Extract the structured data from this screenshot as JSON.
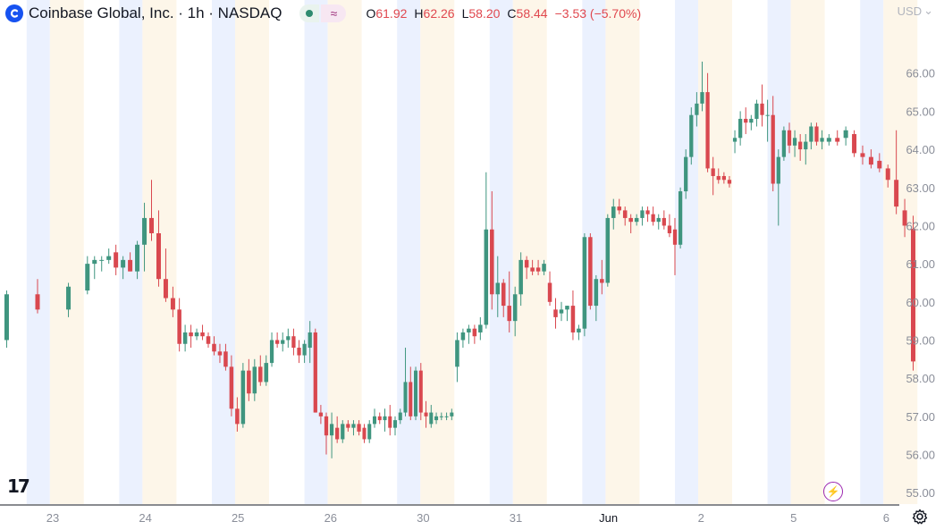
{
  "header": {
    "symbol_title": "Coinbase Global, Inc. · 1h · NASDAQ",
    "indicator_icon": "wave-icon",
    "ohlc": [
      {
        "key": "O",
        "value": "61.92"
      },
      {
        "key": "H",
        "value": "62.26"
      },
      {
        "key": "L",
        "value": "58.20"
      },
      {
        "key": "C",
        "value": "58.44"
      }
    ],
    "change": "−3.53 (−5.70%)",
    "currency": "USD"
  },
  "colors": {
    "up": "#3f957f",
    "down": "#d9484f",
    "premarket_band": "#ebf1fe",
    "postmarket_band": "#fdf6e9",
    "axis_text": "#8a8e99",
    "brand": "#1652f0"
  },
  "chart_data": {
    "type": "candlestick",
    "title": "Coinbase Global, Inc. · 1h · NASDAQ",
    "interval": "1h",
    "ylim": [
      54.7,
      67.4
    ],
    "y_ticks": [
      "55.00",
      "56.00",
      "57.00",
      "58.00",
      "59.00",
      "60.00",
      "61.00",
      "62.00",
      "63.00",
      "64.00",
      "65.00",
      "66.00"
    ],
    "x_tick_labels": [
      "23",
      "24",
      "25",
      "26",
      "30",
      "31",
      "Jun",
      "2",
      "5",
      "6"
    ],
    "grid": false,
    "extended_hours_shading": true,
    "days": [
      {
        "day": "22",
        "candles": [
          {
            "o": 59.0,
            "h": 60.3,
            "l": 58.8,
            "c": 60.2
          },
          {
            "o": 60.2,
            "h": 60.6,
            "l": 59.7,
            "c": 59.8
          },
          {
            "o": 59.8,
            "h": 60.5,
            "l": 59.6,
            "c": 60.4
          }
        ]
      },
      {
        "day": "23",
        "candles": [
          {
            "o": 60.3,
            "h": 61.2,
            "l": 60.2,
            "c": 61.0
          },
          {
            "o": 61.0,
            "h": 61.2,
            "l": 60.6,
            "c": 61.1
          },
          {
            "o": 61.1,
            "h": 61.2,
            "l": 60.8,
            "c": 61.1
          },
          {
            "o": 61.1,
            "h": 61.4,
            "l": 61.0,
            "c": 61.2
          },
          {
            "o": 61.3,
            "h": 61.5,
            "l": 60.7,
            "c": 60.9
          },
          {
            "o": 60.9,
            "h": 61.2,
            "l": 60.6,
            "c": 61.1
          },
          {
            "o": 61.1,
            "h": 61.3,
            "l": 60.8,
            "c": 60.8
          },
          {
            "o": 60.8,
            "h": 61.6,
            "l": 60.6,
            "c": 61.5
          },
          {
            "o": 61.5,
            "h": 62.6,
            "l": 60.8,
            "c": 62.2
          },
          {
            "o": 62.2,
            "h": 63.2,
            "l": 61.6,
            "c": 61.8
          },
          {
            "o": 61.8,
            "h": 62.4,
            "l": 60.4,
            "c": 60.6
          },
          {
            "o": 60.6,
            "h": 61.4,
            "l": 60.0,
            "c": 60.1
          },
          {
            "o": 60.1,
            "h": 60.4,
            "l": 59.6,
            "c": 59.8
          }
        ]
      },
      {
        "day": "24",
        "candles": [
          {
            "o": 59.8,
            "h": 60.1,
            "l": 58.7,
            "c": 58.9
          },
          {
            "o": 58.9,
            "h": 59.4,
            "l": 58.7,
            "c": 59.2
          },
          {
            "o": 59.2,
            "h": 59.4,
            "l": 58.8,
            "c": 59.1
          },
          {
            "o": 59.1,
            "h": 59.3,
            "l": 59.0,
            "c": 59.2
          },
          {
            "o": 59.2,
            "h": 59.4,
            "l": 59.0,
            "c": 59.1
          },
          {
            "o": 59.1,
            "h": 59.2,
            "l": 58.8,
            "c": 58.9
          },
          {
            "o": 58.9,
            "h": 59.1,
            "l": 58.6,
            "c": 58.7
          },
          {
            "o": 58.7,
            "h": 58.9,
            "l": 58.4,
            "c": 58.6
          },
          {
            "o": 58.7,
            "h": 58.9,
            "l": 58.2,
            "c": 58.3
          },
          {
            "o": 58.3,
            "h": 58.6,
            "l": 57.0,
            "c": 57.2
          },
          {
            "o": 57.2,
            "h": 57.5,
            "l": 56.6,
            "c": 56.8
          },
          {
            "o": 56.8,
            "h": 58.4,
            "l": 56.7,
            "c": 58.2
          },
          {
            "o": 58.2,
            "h": 58.5,
            "l": 57.4,
            "c": 57.6
          },
          {
            "o": 57.6,
            "h": 58.5,
            "l": 57.4,
            "c": 58.3
          },
          {
            "o": 58.3,
            "h": 58.6,
            "l": 57.8,
            "c": 57.9
          },
          {
            "o": 57.9,
            "h": 58.6,
            "l": 57.8,
            "c": 58.4
          }
        ]
      },
      {
        "day": "25",
        "candles": [
          {
            "o": 58.4,
            "h": 59.2,
            "l": 58.3,
            "c": 59.0
          },
          {
            "o": 59.0,
            "h": 59.2,
            "l": 58.8,
            "c": 58.9
          },
          {
            "o": 58.9,
            "h": 59.2,
            "l": 58.7,
            "c": 59.0
          },
          {
            "o": 59.0,
            "h": 59.3,
            "l": 58.8,
            "c": 59.1
          },
          {
            "o": 59.1,
            "h": 59.3,
            "l": 58.6,
            "c": 58.8
          },
          {
            "o": 58.8,
            "h": 59.0,
            "l": 58.4,
            "c": 58.6
          },
          {
            "o": 58.6,
            "h": 59.0,
            "l": 58.4,
            "c": 58.9
          },
          {
            "o": 58.8,
            "h": 59.5,
            "l": 58.4,
            "c": 59.2
          },
          {
            "o": 59.2,
            "h": 59.3,
            "l": 57.1,
            "c": 57.1
          },
          {
            "o": 57.1,
            "h": 57.3,
            "l": 56.8,
            "c": 57.0
          },
          {
            "o": 57.0,
            "h": 57.1,
            "l": 56.0,
            "c": 56.5
          },
          {
            "o": 56.5,
            "h": 57.1,
            "l": 55.9,
            "c": 56.8
          },
          {
            "o": 56.7,
            "h": 57.0,
            "l": 56.3,
            "c": 56.4
          },
          {
            "o": 56.4,
            "h": 56.9,
            "l": 56.3,
            "c": 56.8
          },
          {
            "o": 56.8,
            "h": 56.9,
            "l": 56.6,
            "c": 56.7
          },
          {
            "o": 56.7,
            "h": 56.9,
            "l": 56.5,
            "c": 56.8
          },
          {
            "o": 56.8,
            "h": 56.9,
            "l": 56.5,
            "c": 56.6
          }
        ]
      },
      {
        "day": "26",
        "candles": [
          {
            "o": 56.7,
            "h": 56.8,
            "l": 56.3,
            "c": 56.4
          },
          {
            "o": 56.4,
            "h": 56.9,
            "l": 56.3,
            "c": 56.8
          },
          {
            "o": 56.8,
            "h": 57.2,
            "l": 56.7,
            "c": 57.0
          },
          {
            "o": 57.0,
            "h": 57.1,
            "l": 56.8,
            "c": 56.9
          },
          {
            "o": 56.9,
            "h": 57.2,
            "l": 56.6,
            "c": 57.0
          },
          {
            "o": 57.0,
            "h": 57.3,
            "l": 56.5,
            "c": 56.7
          },
          {
            "o": 56.7,
            "h": 57.0,
            "l": 56.5,
            "c": 56.9
          },
          {
            "o": 56.9,
            "h": 57.2,
            "l": 56.8,
            "c": 57.1
          },
          {
            "o": 57.1,
            "h": 58.8,
            "l": 57.0,
            "c": 57.9
          },
          {
            "o": 57.9,
            "h": 58.3,
            "l": 56.9,
            "c": 57.0
          },
          {
            "o": 57.0,
            "h": 58.3,
            "l": 56.9,
            "c": 58.2
          },
          {
            "o": 58.2,
            "h": 58.4,
            "l": 56.9,
            "c": 57.1
          },
          {
            "o": 57.1,
            "h": 57.4,
            "l": 56.7,
            "c": 57.0
          },
          {
            "o": 56.8,
            "h": 57.3,
            "l": 56.7,
            "c": 57.1
          },
          {
            "o": 56.9,
            "h": 57.1,
            "l": 56.8,
            "c": 57.0
          },
          {
            "o": 57.0,
            "h": 57.1,
            "l": 56.9,
            "c": 57.0
          },
          {
            "o": 57.0,
            "h": 57.1,
            "l": 56.9,
            "c": 57.0
          },
          {
            "o": 57.0,
            "h": 57.2,
            "l": 56.9,
            "c": 57.1
          }
        ]
      },
      {
        "day": "30",
        "candles": [
          {
            "o": 58.3,
            "h": 59.2,
            "l": 57.9,
            "c": 59.0
          },
          {
            "o": 59.0,
            "h": 59.3,
            "l": 58.8,
            "c": 59.2
          },
          {
            "o": 59.2,
            "h": 59.4,
            "l": 58.9,
            "c": 59.3
          },
          {
            "o": 59.3,
            "h": 59.4,
            "l": 58.9,
            "c": 59.1
          },
          {
            "o": 59.2,
            "h": 59.6,
            "l": 59.0,
            "c": 59.4
          },
          {
            "o": 59.4,
            "h": 63.4,
            "l": 59.3,
            "c": 61.9
          },
          {
            "o": 61.9,
            "h": 62.9,
            "l": 59.8,
            "c": 60.2
          },
          {
            "o": 60.2,
            "h": 61.2,
            "l": 59.6,
            "c": 60.5
          },
          {
            "o": 60.5,
            "h": 60.6,
            "l": 59.6,
            "c": 59.9
          },
          {
            "o": 59.9,
            "h": 60.8,
            "l": 59.2,
            "c": 59.5
          },
          {
            "o": 59.5,
            "h": 60.4,
            "l": 59.1,
            "c": 60.2
          },
          {
            "o": 60.2,
            "h": 61.3,
            "l": 59.9,
            "c": 61.1
          },
          {
            "o": 61.1,
            "h": 61.2,
            "l": 60.6,
            "c": 60.9
          },
          {
            "o": 60.9,
            "h": 61.1,
            "l": 60.7,
            "c": 60.8
          },
          {
            "o": 60.9,
            "h": 61.1,
            "l": 60.7,
            "c": 60.8
          },
          {
            "o": 60.8,
            "h": 61.1,
            "l": 60.7,
            "c": 61.0
          }
        ]
      },
      {
        "day": "31",
        "candles": [
          {
            "o": 60.5,
            "h": 60.8,
            "l": 59.9,
            "c": 60.0
          },
          {
            "o": 59.8,
            "h": 60.1,
            "l": 59.3,
            "c": 59.6
          },
          {
            "o": 59.7,
            "h": 60.0,
            "l": 59.5,
            "c": 59.8
          },
          {
            "o": 59.8,
            "h": 59.9,
            "l": 59.5,
            "c": 59.9
          },
          {
            "o": 59.9,
            "h": 60.3,
            "l": 59.0,
            "c": 59.2
          },
          {
            "o": 59.2,
            "h": 59.4,
            "l": 59.0,
            "c": 59.3
          },
          {
            "o": 59.3,
            "h": 61.8,
            "l": 59.1,
            "c": 61.7
          },
          {
            "o": 61.7,
            "h": 61.8,
            "l": 59.8,
            "c": 59.9
          },
          {
            "o": 59.9,
            "h": 60.7,
            "l": 59.5,
            "c": 60.6
          },
          {
            "o": 60.6,
            "h": 61.1,
            "l": 60.2,
            "c": 60.5
          },
          {
            "o": 60.5,
            "h": 62.3,
            "l": 60.4,
            "c": 62.2
          },
          {
            "o": 62.2,
            "h": 62.7,
            "l": 61.9,
            "c": 62.5
          },
          {
            "o": 62.5,
            "h": 62.7,
            "l": 62.3,
            "c": 62.4
          },
          {
            "o": 62.4,
            "h": 62.5,
            "l": 62.0,
            "c": 62.2
          },
          {
            "o": 62.2,
            "h": 62.3,
            "l": 61.8,
            "c": 62.1
          },
          {
            "o": 62.1,
            "h": 62.3,
            "l": 62.0,
            "c": 62.2
          }
        ]
      },
      {
        "day": "Jun",
        "candles": [
          {
            "o": 62.2,
            "h": 62.5,
            "l": 62.0,
            "c": 62.4
          },
          {
            "o": 62.4,
            "h": 62.5,
            "l": 62.1,
            "c": 62.3
          },
          {
            "o": 62.3,
            "h": 62.5,
            "l": 62.0,
            "c": 62.1
          },
          {
            "o": 62.1,
            "h": 62.3,
            "l": 61.9,
            "c": 62.2
          },
          {
            "o": 62.2,
            "h": 62.4,
            "l": 61.9,
            "c": 62.0
          },
          {
            "o": 62.0,
            "h": 62.3,
            "l": 61.7,
            "c": 61.8
          },
          {
            "o": 61.9,
            "h": 62.2,
            "l": 60.7,
            "c": 61.5
          },
          {
            "o": 61.5,
            "h": 63.0,
            "l": 61.4,
            "c": 62.9
          },
          {
            "o": 62.9,
            "h": 64.0,
            "l": 62.7,
            "c": 63.8
          },
          {
            "o": 63.8,
            "h": 65.1,
            "l": 63.6,
            "c": 64.9
          },
          {
            "o": 64.9,
            "h": 65.5,
            "l": 64.6,
            "c": 65.2
          },
          {
            "o": 65.2,
            "h": 66.3,
            "l": 65.0,
            "c": 65.5
          },
          {
            "o": 65.5,
            "h": 66.0,
            "l": 63.4,
            "c": 63.5
          },
          {
            "o": 63.5,
            "h": 63.8,
            "l": 62.8,
            "c": 63.3
          },
          {
            "o": 63.3,
            "h": 63.5,
            "l": 63.1,
            "c": 63.2
          },
          {
            "o": 63.3,
            "h": 63.4,
            "l": 63.1,
            "c": 63.2
          },
          {
            "o": 63.2,
            "h": 63.3,
            "l": 63.0,
            "c": 63.1
          }
        ]
      },
      {
        "day": "2",
        "candles": [
          {
            "o": 64.2,
            "h": 64.5,
            "l": 63.9,
            "c": 64.3
          },
          {
            "o": 64.3,
            "h": 65.0,
            "l": 64.1,
            "c": 64.8
          },
          {
            "o": 64.8,
            "h": 65.1,
            "l": 64.4,
            "c": 64.7
          },
          {
            "o": 64.7,
            "h": 64.9,
            "l": 64.5,
            "c": 64.8
          },
          {
            "o": 64.8,
            "h": 65.3,
            "l": 64.6,
            "c": 65.2
          },
          {
            "o": 65.2,
            "h": 65.7,
            "l": 64.6,
            "c": 64.9
          },
          {
            "o": 64.9,
            "h": 65.3,
            "l": 64.2,
            "c": 64.9
          },
          {
            "o": 64.9,
            "h": 65.4,
            "l": 62.9,
            "c": 63.1
          },
          {
            "o": 63.1,
            "h": 64.0,
            "l": 62.0,
            "c": 63.8
          },
          {
            "o": 63.8,
            "h": 64.6,
            "l": 63.7,
            "c": 64.5
          },
          {
            "o": 64.5,
            "h": 64.7,
            "l": 63.9,
            "c": 64.1
          },
          {
            "o": 64.1,
            "h": 64.5,
            "l": 63.8,
            "c": 64.3
          },
          {
            "o": 64.2,
            "h": 64.4,
            "l": 63.7,
            "c": 64.0
          },
          {
            "o": 64.0,
            "h": 64.4,
            "l": 63.6,
            "c": 64.2
          },
          {
            "o": 64.2,
            "h": 64.7,
            "l": 64.0,
            "c": 64.6
          },
          {
            "o": 64.6,
            "h": 64.7,
            "l": 64.1,
            "c": 64.2
          },
          {
            "o": 64.2,
            "h": 64.5,
            "l": 64.0,
            "c": 64.3
          }
        ]
      },
      {
        "day": "5",
        "candles": [
          {
            "o": 64.2,
            "h": 64.4,
            "l": 64.1,
            "c": 64.3
          },
          {
            "o": 64.3,
            "h": 64.5,
            "l": 64.1,
            "c": 64.2
          },
          {
            "o": 64.3,
            "h": 64.6,
            "l": 64.1,
            "c": 64.5
          },
          {
            "o": 64.4,
            "h": 64.5,
            "l": 63.8,
            "c": 63.9
          },
          {
            "o": 63.9,
            "h": 64.1,
            "l": 63.6,
            "c": 63.8
          },
          {
            "o": 63.8,
            "h": 64.0,
            "l": 63.5,
            "c": 63.6
          },
          {
            "o": 63.7,
            "h": 63.9,
            "l": 63.4,
            "c": 63.5
          },
          {
            "o": 63.5,
            "h": 63.6,
            "l": 63.0,
            "c": 63.2
          },
          {
            "o": 63.2,
            "h": 64.5,
            "l": 62.3,
            "c": 62.5
          },
          {
            "o": 62.4,
            "h": 62.7,
            "l": 61.7,
            "c": 62.0
          },
          {
            "o": 61.92,
            "h": 62.26,
            "l": 58.2,
            "c": 58.44
          }
        ]
      }
    ]
  },
  "branding": {
    "logo": "tradingview-logo",
    "logo_text": "17"
  },
  "footer": {
    "bolt_icon": "lightning-icon",
    "settings_icon": "gear-icon"
  }
}
